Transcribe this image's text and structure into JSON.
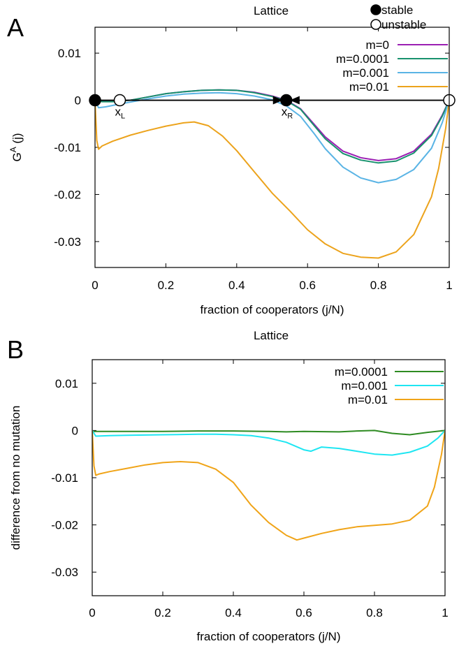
{
  "chart_data": [
    {
      "panel": "A",
      "type": "line",
      "title": "Lattice",
      "xlabel": "fraction of cooperators (j/N)",
      "ylabel": "G^A (j)",
      "ylabel_base": "G",
      "ylabel_sup": "A",
      "ylabel_rest": " (j)",
      "xlim": [
        0,
        1
      ],
      "ylim": [
        -0.0355,
        0.0155
      ],
      "xticks": [
        0,
        0.2,
        0.4,
        0.6,
        0.8,
        1
      ],
      "xtick_labels": [
        "0",
        "0.2",
        "0.4",
        "0.6",
        "0.8",
        "1"
      ],
      "yticks": [
        0.01,
        0,
        -0.01,
        -0.02,
        -0.03
      ],
      "ytick_labels": [
        "0.01",
        "0",
        "-0.01",
        "-0.02",
        "-0.03"
      ],
      "grid": false,
      "legend_position": "top-right",
      "marker_legend": [
        {
          "label": "stable",
          "style": "filled"
        },
        {
          "label": "unstable",
          "style": "open"
        }
      ],
      "series": [
        {
          "name": "m=0",
          "color": "#9b1fb3",
          "x": [
            0,
            0.02,
            0.05,
            0.1,
            0.15,
            0.2,
            0.25,
            0.3,
            0.35,
            0.4,
            0.45,
            0.5,
            0.54,
            0.58,
            0.62,
            0.65,
            0.7,
            0.75,
            0.8,
            0.85,
            0.9,
            0.95,
            0.98,
            1
          ],
          "y": [
            0,
            -0.0002,
            -0.0002,
            0,
            0.0007,
            0.0014,
            0.0018,
            0.0021,
            0.0022,
            0.0021,
            0.0017,
            0.0009,
            0,
            -0.0018,
            -0.0052,
            -0.0078,
            -0.0108,
            -0.0122,
            -0.0128,
            -0.0124,
            -0.0108,
            -0.0072,
            -0.0032,
            0
          ]
        },
        {
          "name": "m=0.0001",
          "color": "#18926e",
          "x": [
            0,
            0.02,
            0.05,
            0.1,
            0.15,
            0.2,
            0.25,
            0.3,
            0.35,
            0.4,
            0.45,
            0.5,
            0.54,
            0.58,
            0.62,
            0.65,
            0.7,
            0.75,
            0.8,
            0.85,
            0.9,
            0.95,
            0.98,
            1
          ],
          "y": [
            0,
            -0.0003,
            -0.0003,
            0,
            0.0007,
            0.0014,
            0.0018,
            0.0021,
            0.0022,
            0.0021,
            0.0016,
            0.0008,
            -0.0001,
            -0.0019,
            -0.0055,
            -0.0082,
            -0.0113,
            -0.0127,
            -0.0133,
            -0.0129,
            -0.0112,
            -0.0075,
            -0.0034,
            0
          ]
        },
        {
          "name": "m=0.001",
          "color": "#5ab4e5",
          "x": [
            0,
            0.01,
            0.03,
            0.07,
            0.1,
            0.15,
            0.2,
            0.25,
            0.3,
            0.35,
            0.4,
            0.45,
            0.5,
            0.54,
            0.58,
            0.62,
            0.65,
            0.7,
            0.75,
            0.8,
            0.85,
            0.9,
            0.95,
            0.98,
            1
          ],
          "y": [
            0,
            -0.0016,
            -0.0014,
            -0.0008,
            -0.0004,
            0.0003,
            0.0009,
            0.0013,
            0.0015,
            0.0016,
            0.0014,
            0.0009,
            0.0001,
            -0.0012,
            -0.0034,
            -0.0072,
            -0.0103,
            -0.0142,
            -0.0165,
            -0.0175,
            -0.0168,
            -0.0147,
            -0.0102,
            -0.0048,
            0
          ]
        },
        {
          "name": "m=0.01",
          "color": "#eca31c",
          "x": [
            0,
            0.005,
            0.01,
            0.02,
            0.05,
            0.1,
            0.15,
            0.2,
            0.25,
            0.28,
            0.32,
            0.36,
            0.4,
            0.45,
            0.5,
            0.55,
            0.6,
            0.65,
            0.7,
            0.75,
            0.8,
            0.85,
            0.9,
            0.95,
            0.97,
            0.99,
            1
          ],
          "y": [
            0,
            -0.0085,
            -0.0104,
            -0.0097,
            -0.0087,
            -0.0074,
            -0.0064,
            -0.0055,
            -0.0048,
            -0.0046,
            -0.0054,
            -0.0076,
            -0.0107,
            -0.0152,
            -0.0197,
            -0.0235,
            -0.0275,
            -0.0305,
            -0.0325,
            -0.0333,
            -0.0335,
            -0.0322,
            -0.0285,
            -0.0205,
            -0.0145,
            -0.006,
            0
          ]
        }
      ],
      "points": [
        {
          "x": 0,
          "y": 0,
          "style": "filled",
          "label": ""
        },
        {
          "x": 0.07,
          "y": 0,
          "style": "open",
          "label": "x_L",
          "label_base": "x",
          "label_sub": "L"
        },
        {
          "x": 0.54,
          "y": 0,
          "style": "filled",
          "label": "x_R",
          "label_base": "x",
          "label_sub": "R"
        },
        {
          "x": 1,
          "y": 0,
          "style": "open",
          "label": ""
        }
      ],
      "arrows": [
        {
          "from": 0,
          "to": 0.53
        },
        {
          "from": 1,
          "to": 0.55
        }
      ]
    },
    {
      "panel": "B",
      "type": "line",
      "title": "Lattice",
      "xlabel": "fraction of cooperators (j/N)",
      "ylabel": "difference from no mutation",
      "xlim": [
        0,
        1
      ],
      "ylim": [
        -0.035,
        0.015
      ],
      "xticks": [
        0,
        0.2,
        0.4,
        0.6,
        0.8,
        1
      ],
      "xtick_labels": [
        "0",
        "0.2",
        "0.4",
        "0.6",
        "0.8",
        "1"
      ],
      "yticks": [
        0.01,
        0,
        -0.01,
        -0.02,
        -0.03
      ],
      "ytick_labels": [
        "0.01",
        "0",
        "-0.01",
        "-0.02",
        "-0.03"
      ],
      "grid": false,
      "legend_position": "top-right",
      "series": [
        {
          "name": "m=0.0001",
          "color": "#2e8b22",
          "x": [
            0,
            0.1,
            0.2,
            0.3,
            0.4,
            0.5,
            0.55,
            0.6,
            0.7,
            0.75,
            0.8,
            0.85,
            0.9,
            0.95,
            1
          ],
          "y": [
            -0.0002,
            -0.0002,
            -0.0002,
            -0.0001,
            -0.0001,
            -0.0002,
            -0.0003,
            -0.0002,
            -0.0003,
            -0.0001,
            0,
            -0.0006,
            -0.0009,
            -0.0004,
            0
          ]
        },
        {
          "name": "m=0.001",
          "color": "#1ee6f2",
          "x": [
            0,
            0.01,
            0.05,
            0.1,
            0.2,
            0.3,
            0.35,
            0.4,
            0.45,
            0.5,
            0.55,
            0.6,
            0.62,
            0.65,
            0.7,
            0.75,
            0.8,
            0.85,
            0.9,
            0.95,
            0.98,
            1
          ],
          "y": [
            0,
            -0.0012,
            -0.0011,
            -0.001,
            -0.0009,
            -0.0008,
            -0.0008,
            -0.0009,
            -0.0011,
            -0.0016,
            -0.0025,
            -0.0041,
            -0.0044,
            -0.0035,
            -0.0038,
            -0.0044,
            -0.005,
            -0.0052,
            -0.0046,
            -0.0033,
            -0.0016,
            0
          ]
        },
        {
          "name": "m=0.01",
          "color": "#f0a418",
          "x": [
            0,
            0.005,
            0.01,
            0.02,
            0.05,
            0.1,
            0.15,
            0.2,
            0.25,
            0.3,
            0.35,
            0.4,
            0.45,
            0.5,
            0.55,
            0.58,
            0.6,
            0.65,
            0.7,
            0.75,
            0.8,
            0.85,
            0.9,
            0.95,
            0.97,
            0.99,
            1
          ],
          "y": [
            0,
            -0.0075,
            -0.0095,
            -0.0092,
            -0.0087,
            -0.008,
            -0.0073,
            -0.0068,
            -0.0066,
            -0.0068,
            -0.0082,
            -0.011,
            -0.0158,
            -0.0195,
            -0.0222,
            -0.0232,
            -0.0228,
            -0.0218,
            -0.021,
            -0.0204,
            -0.0201,
            -0.0198,
            -0.019,
            -0.016,
            -0.012,
            -0.005,
            0
          ]
        }
      ]
    }
  ]
}
